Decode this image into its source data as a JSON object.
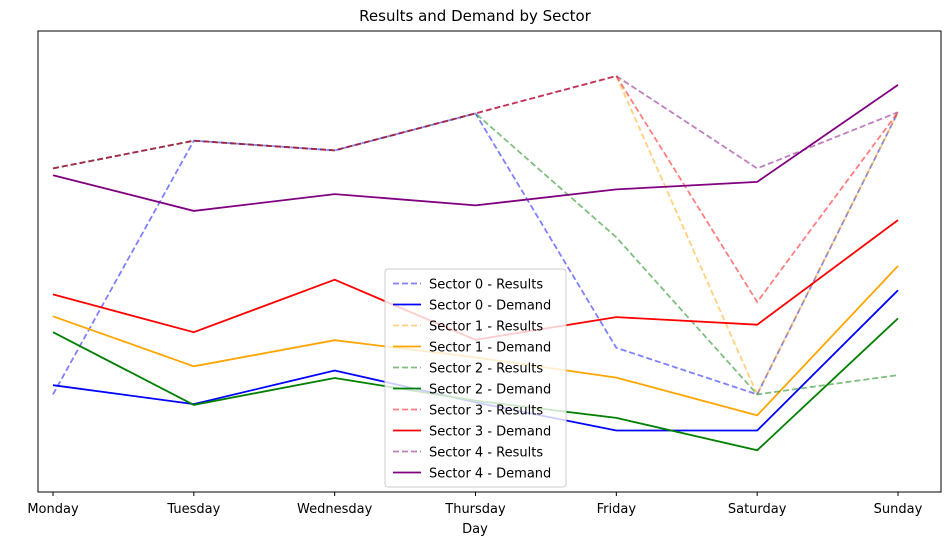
{
  "chart_data": {
    "type": "line",
    "title": "Results and Demand by Sector",
    "xlabel": "Day",
    "ylabel": "",
    "categories": [
      "Monday",
      "Tuesday",
      "Wednesday",
      "Thursday",
      "Friday",
      "Saturday",
      "Sunday"
    ],
    "y_ticks_shown": false,
    "ylim": [
      0,
      100
    ],
    "grid": false,
    "legend_position": "lower center",
    "series": [
      {
        "name": "Sector 0 - Results",
        "color": "#0000ff",
        "style": "dashed",
        "opacity": 0.5,
        "values": [
          18,
          78.4,
          76.1,
          84.9,
          29.1,
          18.0,
          85.2
        ]
      },
      {
        "name": "Sector 0 - Demand",
        "color": "#0000ff",
        "style": "solid",
        "opacity": 1.0,
        "values": [
          20.2,
          15.7,
          23.7,
          16.1,
          9.4,
          9.4,
          42.8
        ]
      },
      {
        "name": "Sector 1 - Results",
        "color": "#ffa500",
        "style": "dashed",
        "opacity": 0.5,
        "values": [
          71.8,
          78.4,
          76.1,
          84.9,
          93.8,
          18.0,
          85.2
        ]
      },
      {
        "name": "Sector 1 - Demand",
        "color": "#ffa500",
        "style": "solid",
        "opacity": 1.0,
        "values": [
          36.6,
          24.7,
          30.9,
          26.8,
          22.0,
          13.0,
          48.6
        ]
      },
      {
        "name": "Sector 2 - Results",
        "color": "#008000",
        "style": "dashed",
        "opacity": 0.5,
        "values": [
          71.8,
          78.4,
          76.1,
          84.9,
          55.4,
          18.0,
          22.6
        ]
      },
      {
        "name": "Sector 2 - Demand",
        "color": "#008000",
        "style": "solid",
        "opacity": 1.0,
        "values": [
          32.8,
          15.5,
          21.9,
          16.5,
          12.4,
          4.7,
          36.1
        ]
      },
      {
        "name": "Sector 3 - Results",
        "color": "#ff0000",
        "style": "dashed",
        "opacity": 0.5,
        "values": [
          71.8,
          78.4,
          76.1,
          84.9,
          93.8,
          40.0,
          85.2
        ]
      },
      {
        "name": "Sector 3 - Demand",
        "color": "#ff0000",
        "style": "solid",
        "opacity": 1.0,
        "values": [
          41.8,
          32.8,
          45.3,
          31.0,
          36.4,
          34.6,
          59.5
        ]
      },
      {
        "name": "Sector 4 - Results",
        "color": "#800080",
        "style": "dashed",
        "opacity": 0.5,
        "values": [
          71.8,
          78.4,
          76.1,
          84.9,
          93.8,
          71.8,
          85.2
        ]
      },
      {
        "name": "Sector 4 - Demand",
        "color": "#800080",
        "style": "solid",
        "opacity": 1.0,
        "values": [
          70.2,
          61.7,
          65.7,
          63.0,
          66.8,
          68.6,
          91.7
        ]
      }
    ]
  }
}
